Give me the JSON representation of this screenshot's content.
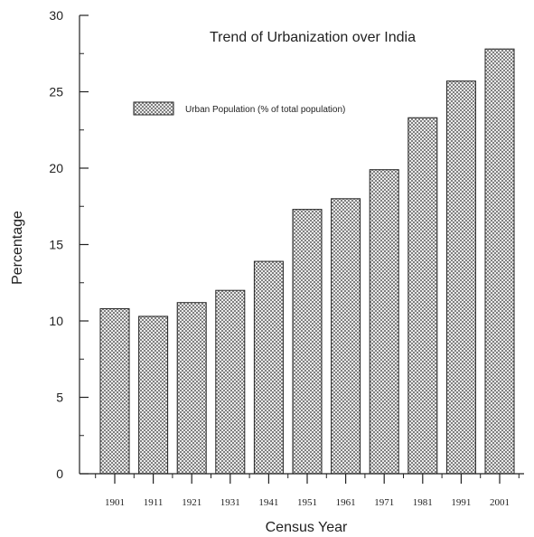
{
  "chart_data": {
    "type": "bar",
    "title": "Trend of Urbanization over India",
    "xlabel": "Census Year",
    "ylabel": "Percentage",
    "categories": [
      "1901",
      "1911",
      "1921",
      "1931",
      "1941",
      "1951",
      "1961",
      "1971",
      "1981",
      "1991",
      "2001"
    ],
    "series": [
      {
        "name": "Urban Population (% of total population)",
        "values": [
          10.8,
          10.3,
          11.2,
          12.0,
          13.9,
          17.3,
          18.0,
          19.9,
          23.3,
          25.7,
          27.8
        ]
      }
    ],
    "ylim": [
      0,
      30
    ],
    "yticks": [
      0,
      5,
      10,
      15,
      20,
      25,
      30
    ],
    "grid": false,
    "legend_position": "top-left",
    "bar_fill": "crosshatch",
    "colors": {
      "bar_stroke": "#222222",
      "hatch": "#555555",
      "axis": "#222222",
      "text": "#222222"
    }
  }
}
